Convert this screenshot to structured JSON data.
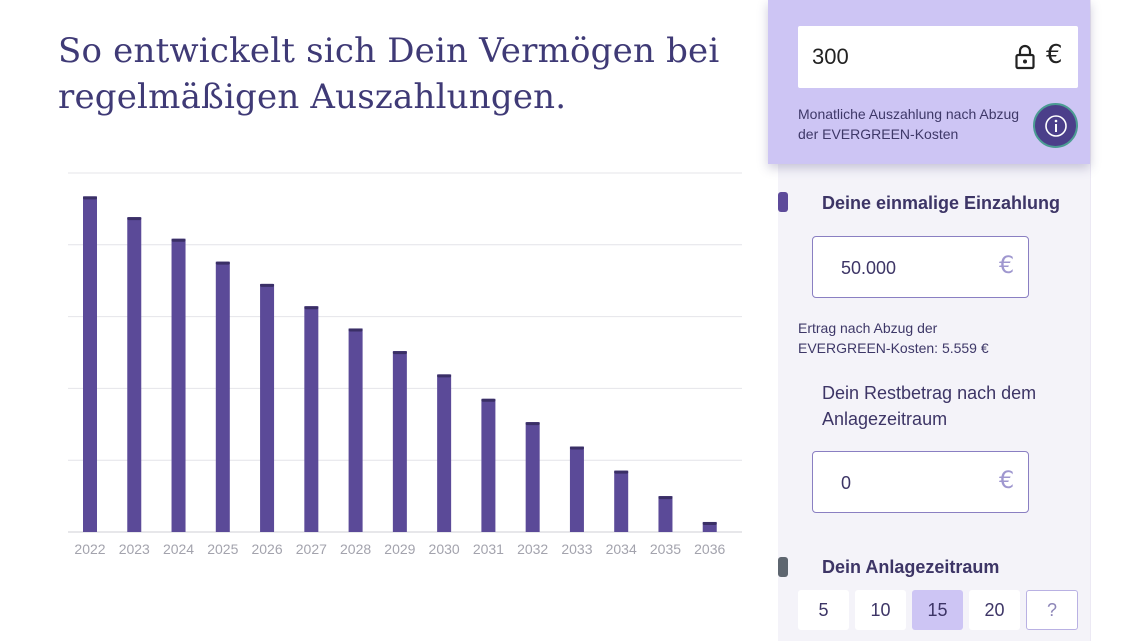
{
  "headline": {
    "line1": "So entwickelt sich Dein Vermögen bei",
    "line2": "regelmäßigen Auszahlungen."
  },
  "payout": {
    "value": "300",
    "currency": "€",
    "caption": "Monatliche Auszahlung nach Abzug der EVERGREEN-Kosten",
    "lock_icon": "lock-icon",
    "info_icon": "info-icon"
  },
  "deposit": {
    "title": "Deine einmalige Einzahlung",
    "value": "50.000",
    "currency": "€",
    "yield_line1": "Ertrag nach Abzug der",
    "yield_line2": "EVERGREEN-Kosten:  5.559 €"
  },
  "rest": {
    "title": "Dein Restbetrag nach dem Anlagezeitraum",
    "value": "0",
    "currency": "€"
  },
  "period": {
    "title": "Dein Anlagezeitraum",
    "options": [
      "5",
      "10",
      "15",
      "20",
      "?"
    ],
    "selected": "15"
  },
  "colors": {
    "bar": "#5b4a98",
    "bar_top": "#3a2f66",
    "accent": "#cdc5f4",
    "marker_deposit": "#5d4a9a",
    "marker_period": "#5e6670"
  },
  "chart_data": {
    "type": "bar",
    "categories": [
      "2022",
      "2023",
      "2024",
      "2025",
      "2026",
      "2027",
      "2028",
      "2029",
      "2030",
      "2031",
      "2032",
      "2033",
      "2034",
      "2035",
      "2036"
    ],
    "values": [
      93.5,
      87.7,
      81.7,
      75.3,
      69.1,
      62.9,
      56.7,
      50.4,
      43.9,
      37.1,
      30.6,
      23.8,
      17.1,
      10.0,
      2.8
    ],
    "ylim": [
      0,
      100
    ],
    "grid": true,
    "title": "",
    "xlabel": "",
    "ylabel": ""
  }
}
